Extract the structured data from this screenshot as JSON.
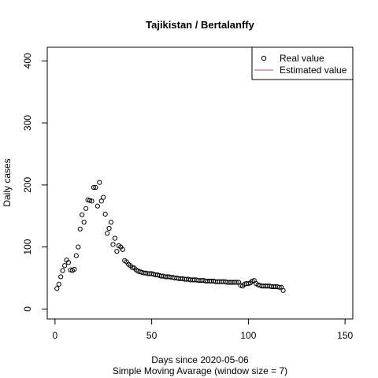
{
  "chart_data": {
    "type": "scatter",
    "title": "Tajikistan / Bertalanffy",
    "xlabel": "Days since 2020-05-06",
    "sublabel": "Simple Moving Avarage (window size = 7)",
    "ylabel": "Daily cases",
    "xlim": [
      -4,
      154
    ],
    "ylim": [
      -16,
      422
    ],
    "xticks": [
      0,
      50,
      100,
      150
    ],
    "yticks": [
      0,
      100,
      200,
      300,
      400
    ],
    "legend": {
      "position": "top-right",
      "entries": [
        {
          "label": "Real value",
          "marker": "circle",
          "color": "#000000"
        },
        {
          "label": "Estimated value",
          "marker": "line",
          "color": "#9b4f9b"
        }
      ]
    },
    "series": [
      {
        "name": "Real value",
        "x": [
          1,
          2,
          3,
          4,
          5,
          6,
          7,
          8,
          9,
          10,
          11,
          12,
          13,
          14,
          15,
          16,
          17,
          18,
          19,
          20,
          21,
          22,
          23,
          24,
          25,
          26,
          27,
          28,
          29,
          30,
          31,
          32,
          33,
          34,
          35,
          36,
          37,
          38,
          39,
          40,
          41,
          42,
          43,
          44,
          45,
          46,
          47,
          48,
          49,
          50,
          51,
          52,
          53,
          54,
          55,
          56,
          57,
          58,
          59,
          60,
          61,
          62,
          63,
          64,
          65,
          66,
          67,
          68,
          69,
          70,
          71,
          72,
          73,
          74,
          75,
          76,
          77,
          78,
          79,
          80,
          81,
          82,
          83,
          84,
          85,
          86,
          87,
          88,
          89,
          90,
          91,
          92,
          93,
          94,
          95,
          96,
          97,
          98,
          99,
          100,
          101,
          102,
          103,
          104,
          105,
          106,
          107,
          108,
          109,
          110,
          111,
          112,
          113,
          114,
          115,
          116,
          117,
          118
        ],
        "y": [
          33,
          40,
          52,
          62,
          70,
          79,
          75,
          63,
          62,
          64,
          86,
          100,
          129,
          152,
          140,
          162,
          176,
          175,
          174,
          196,
          196,
          166,
          204,
          174,
          180,
          153,
          122,
          130,
          140,
          104,
          114,
          93,
          102,
          100,
          96,
          78,
          76,
          72,
          70,
          67,
          66,
          63,
          61,
          60,
          59,
          58,
          58,
          57,
          57,
          57,
          56,
          55,
          55,
          54,
          53,
          53,
          52,
          52,
          52,
          51,
          51,
          50,
          50,
          49,
          49,
          49,
          48,
          48,
          48,
          47,
          47,
          47,
          47,
          46,
          46,
          46,
          46,
          45,
          45,
          45,
          45,
          45,
          44,
          44,
          44,
          44,
          44,
          44,
          43,
          43,
          43,
          43,
          43,
          43,
          43,
          38,
          37,
          40,
          41,
          41,
          42,
          45,
          46,
          41,
          39,
          38,
          37,
          37,
          37,
          37,
          37,
          36,
          36,
          36,
          36,
          35,
          35,
          30
        ]
      },
      {
        "name": "Estimated value",
        "x": [],
        "y": []
      }
    ]
  }
}
